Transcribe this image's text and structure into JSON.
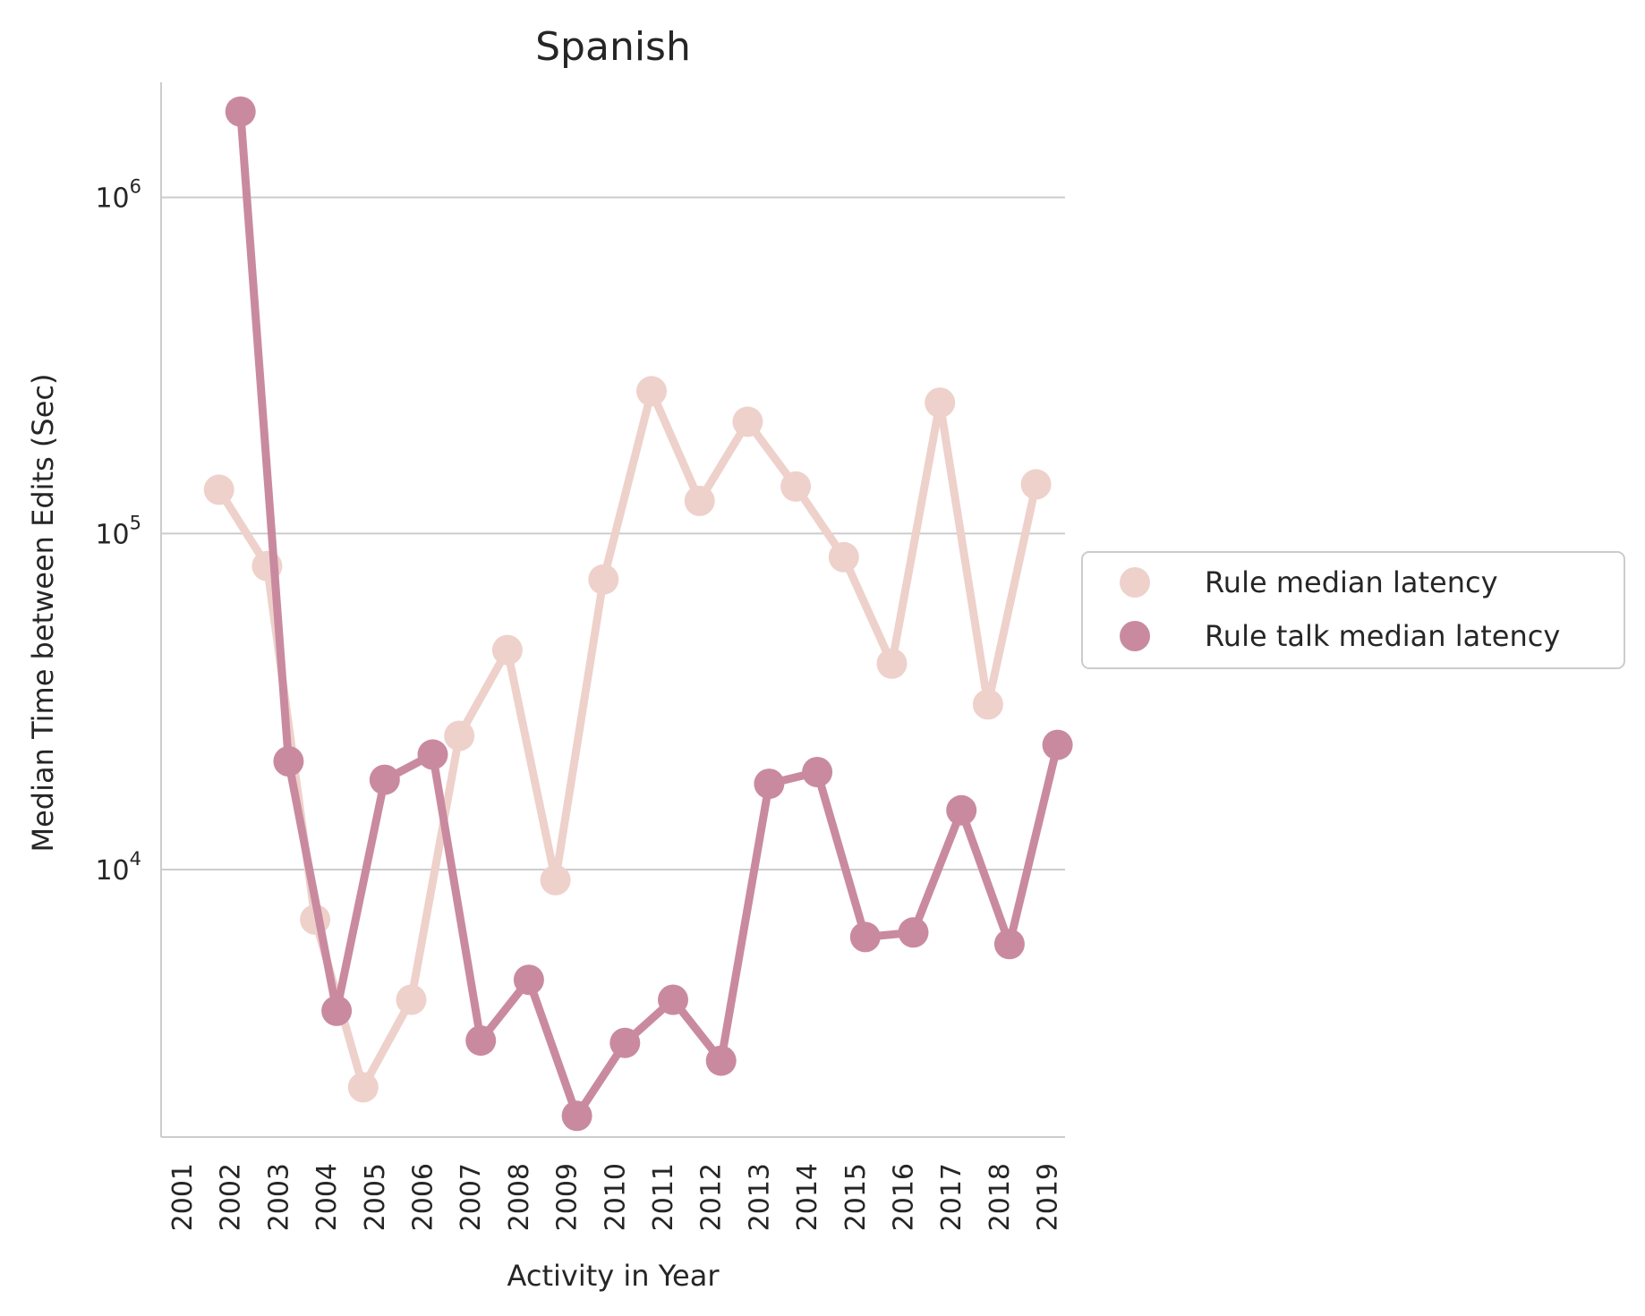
{
  "chart_data": {
    "type": "line",
    "title": "Spanish",
    "xlabel": "Activity in Year",
    "ylabel": "Median Time between Edits (Sec)",
    "yscale": "log",
    "ylim": [
      1600,
      2200000
    ],
    "yticks": [
      {
        "value": 10000,
        "base": "10",
        "exp": "4"
      },
      {
        "value": 100000,
        "base": "10",
        "exp": "5"
      },
      {
        "value": 1000000,
        "base": "10",
        "exp": "6"
      }
    ],
    "grid": "horizontal",
    "legend_position": "right",
    "categories": [
      "2001",
      "2002",
      "2003",
      "2004",
      "2005",
      "2006",
      "2007",
      "2008",
      "2009",
      "2010",
      "2011",
      "2012",
      "2013",
      "2014",
      "2015",
      "2016",
      "2017",
      "2018",
      "2019"
    ],
    "series": [
      {
        "name": "Rule median latency",
        "color": "#eed1cb",
        "values": [
          null,
          135000,
          80000,
          7100,
          2250,
          4100,
          25000,
          45000,
          9300,
          73000,
          265000,
          125000,
          215000,
          138000,
          85000,
          41000,
          245000,
          31000,
          140000
        ]
      },
      {
        "name": "Rule talk median latency",
        "color": "#c98aa0",
        "values": [
          null,
          1800000,
          21000,
          3800,
          18500,
          22000,
          3100,
          4700,
          1850,
          3050,
          4100,
          2700,
          18000,
          19500,
          6300,
          6500,
          15000,
          6000,
          23500
        ]
      }
    ]
  }
}
